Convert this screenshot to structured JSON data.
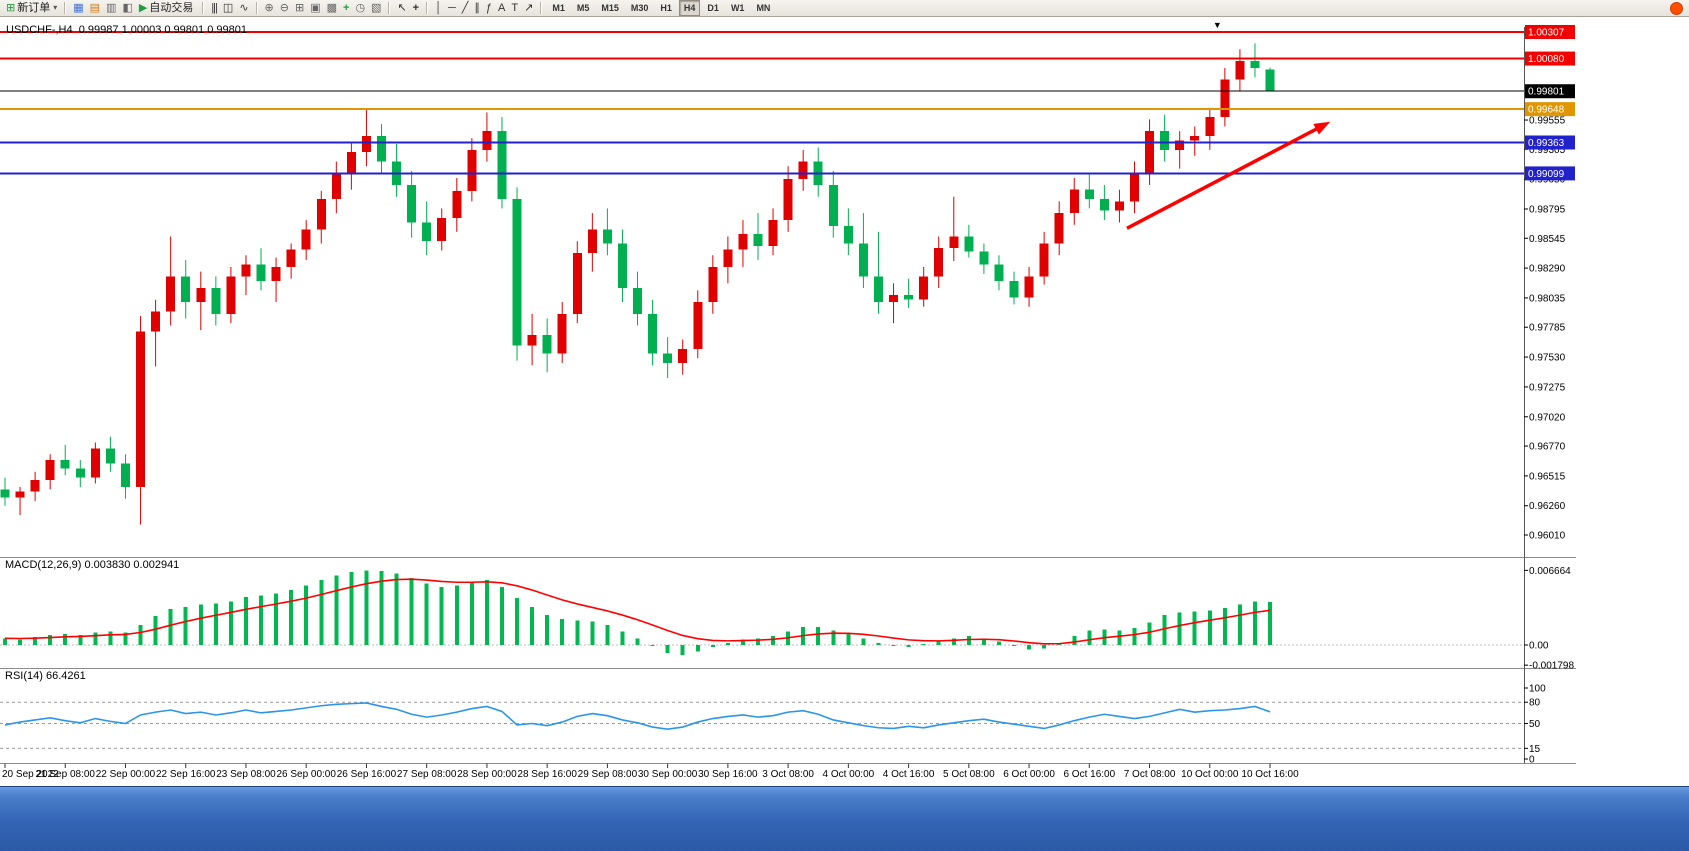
{
  "toolbar": {
    "new_order_label": "新订单",
    "autotrade_label": "自动交易",
    "timeframes": [
      "M1",
      "M5",
      "M15",
      "M30",
      "H1",
      "H4",
      "D1",
      "W1",
      "MN"
    ],
    "active_timeframe": "H4"
  },
  "icons": {
    "new_order": "⊞",
    "dropdown_caret": "▾",
    "charts": "▦",
    "market_watch": "▤",
    "data_window": "▥",
    "navigator": "◧",
    "autotrade_play": "▶",
    "bar_chart": "|||",
    "candle_chart": "◫",
    "line_chart": "∿",
    "zoom_in": "⊕",
    "zoom_out": "⊖",
    "grid": "⊞",
    "tile_windows": "▣",
    "cascade_windows": "▩",
    "indicators_add": "+",
    "periods_clock": "◷",
    "templates": "▧",
    "cursor": "↖",
    "crosshair": "+",
    "vline": "│",
    "hline": "─",
    "trendline": "╱",
    "channel": "∥",
    "fibonacci": "ƒ",
    "text": "A",
    "text_label": "T",
    "arrows": "↗"
  },
  "chart_data": {
    "type": "candlestick",
    "symbol": "USDCHF-,H4",
    "ohlc_text": "0.99987 1.00003 0.99801 0.99801",
    "up_color": "#e00000",
    "down_color": "#00b050",
    "price_axis": {
      "min": 0.9601,
      "max": 1.00307,
      "ticks": [
        "0.99555",
        "0.99305",
        "0.99050",
        "0.98795",
        "0.98545",
        "0.98290",
        "0.98035",
        "0.97785",
        "0.97530",
        "0.97275",
        "0.97020",
        "0.96770",
        "0.96515",
        "0.96260",
        "0.96010"
      ]
    },
    "levels": [
      {
        "price": 1.00307,
        "badge": "1.00307",
        "color": "#f20000",
        "width": 2
      },
      {
        "price": 1.0008,
        "badge": "1.00080",
        "color": "#f20000",
        "width": 2
      },
      {
        "price": 0.99801,
        "badge": "0.99801",
        "color": "#000000",
        "width": 1
      },
      {
        "price": 0.99648,
        "badge": "0.99648",
        "color": "#e09600",
        "width": 2
      },
      {
        "price": 0.99363,
        "badge": "0.99363",
        "color": "#2222cc",
        "width": 2
      },
      {
        "price": 0.99099,
        "badge": "0.99099",
        "color": "#2222cc",
        "width": 2
      }
    ],
    "trend_arrow": {
      "from": {
        "index": 74.5,
        "price": 0.9863
      },
      "to": {
        "index": 88,
        "price": 0.9954
      },
      "color": "#ff0000"
    },
    "top_marker": {
      "index": 80.5,
      "glyph": "▼"
    },
    "time_labels": [
      "20 Sep 2022",
      "21 Sep 08:00",
      "22 Sep 00:00",
      "22 Sep 16:00",
      "23 Sep 08:00",
      "26 Sep 00:00",
      "26 Sep 16:00",
      "27 Sep 08:00",
      "28 Sep 00:00",
      "28 Sep 16:00",
      "29 Sep 08:00",
      "30 Sep 00:00",
      "30 Sep 16:00",
      "3 Oct 08:00",
      "4 Oct 00:00",
      "4 Oct 16:00",
      "5 Oct 08:00",
      "6 Oct 00:00",
      "6 Oct 16:00",
      "7 Oct 08:00",
      "10 Oct 00:00",
      "10 Oct 16:00"
    ],
    "candles_per_label": 4,
    "candles": [
      [
        0.964,
        0.965,
        0.9626,
        0.9633
      ],
      [
        0.9633,
        0.9642,
        0.9618,
        0.9638
      ],
      [
        0.9638,
        0.9655,
        0.963,
        0.9648
      ],
      [
        0.9648,
        0.967,
        0.964,
        0.9665
      ],
      [
        0.9665,
        0.9678,
        0.9652,
        0.9658
      ],
      [
        0.9658,
        0.9665,
        0.9642,
        0.965
      ],
      [
        0.965,
        0.968,
        0.9645,
        0.9675
      ],
      [
        0.9675,
        0.9685,
        0.9655,
        0.9662
      ],
      [
        0.9662,
        0.967,
        0.9632,
        0.9642
      ],
      [
        0.9642,
        0.9788,
        0.961,
        0.9775
      ],
      [
        0.9775,
        0.9802,
        0.9745,
        0.9792
      ],
      [
        0.9792,
        0.9856,
        0.978,
        0.9822
      ],
      [
        0.9822,
        0.9836,
        0.9786,
        0.98
      ],
      [
        0.98,
        0.9826,
        0.9776,
        0.9812
      ],
      [
        0.9812,
        0.9822,
        0.978,
        0.979
      ],
      [
        0.979,
        0.983,
        0.9782,
        0.9822
      ],
      [
        0.9822,
        0.984,
        0.9806,
        0.9832
      ],
      [
        0.9832,
        0.9846,
        0.981,
        0.9818
      ],
      [
        0.9818,
        0.9838,
        0.98,
        0.983
      ],
      [
        0.983,
        0.985,
        0.982,
        0.9845
      ],
      [
        0.9845,
        0.987,
        0.9836,
        0.9862
      ],
      [
        0.9862,
        0.9895,
        0.985,
        0.9888
      ],
      [
        0.9888,
        0.992,
        0.9876,
        0.991
      ],
      [
        0.991,
        0.9936,
        0.9896,
        0.9928
      ],
      [
        0.9928,
        0.9965,
        0.9916,
        0.9942
      ],
      [
        0.9942,
        0.9952,
        0.991,
        0.992
      ],
      [
        0.992,
        0.9935,
        0.989,
        0.99
      ],
      [
        0.99,
        0.9912,
        0.9855,
        0.9868
      ],
      [
        0.9868,
        0.9886,
        0.984,
        0.9852
      ],
      [
        0.9852,
        0.988,
        0.9844,
        0.9872
      ],
      [
        0.9872,
        0.9906,
        0.986,
        0.9895
      ],
      [
        0.9895,
        0.994,
        0.9886,
        0.993
      ],
      [
        0.993,
        0.9962,
        0.992,
        0.9946
      ],
      [
        0.9946,
        0.9958,
        0.988,
        0.9888
      ],
      [
        0.9888,
        0.9898,
        0.975,
        0.9763
      ],
      [
        0.9763,
        0.979,
        0.9746,
        0.9772
      ],
      [
        0.9772,
        0.9786,
        0.974,
        0.9756
      ],
      [
        0.9756,
        0.98,
        0.9748,
        0.979
      ],
      [
        0.979,
        0.9852,
        0.9782,
        0.9842
      ],
      [
        0.9842,
        0.9876,
        0.9826,
        0.9862
      ],
      [
        0.9862,
        0.988,
        0.984,
        0.985
      ],
      [
        0.985,
        0.9862,
        0.98,
        0.9812
      ],
      [
        0.9812,
        0.9826,
        0.978,
        0.979
      ],
      [
        0.979,
        0.9802,
        0.9746,
        0.9756
      ],
      [
        0.9756,
        0.977,
        0.9735,
        0.9748
      ],
      [
        0.9748,
        0.9768,
        0.9738,
        0.976
      ],
      [
        0.976,
        0.981,
        0.9752,
        0.98
      ],
      [
        0.98,
        0.984,
        0.979,
        0.983
      ],
      [
        0.983,
        0.9856,
        0.9816,
        0.9845
      ],
      [
        0.9845,
        0.987,
        0.983,
        0.9858
      ],
      [
        0.9858,
        0.9876,
        0.9836,
        0.9848
      ],
      [
        0.9848,
        0.988,
        0.984,
        0.987
      ],
      [
        0.987,
        0.9916,
        0.986,
        0.9905
      ],
      [
        0.9905,
        0.993,
        0.9895,
        0.992
      ],
      [
        0.992,
        0.9932,
        0.989,
        0.99
      ],
      [
        0.99,
        0.9912,
        0.9855,
        0.9865
      ],
      [
        0.9865,
        0.988,
        0.984,
        0.985
      ],
      [
        0.985,
        0.9876,
        0.9812,
        0.9822
      ],
      [
        0.9822,
        0.986,
        0.979,
        0.98
      ],
      [
        0.98,
        0.9816,
        0.9782,
        0.9806
      ],
      [
        0.9806,
        0.982,
        0.9795,
        0.9802
      ],
      [
        0.9802,
        0.983,
        0.9796,
        0.9822
      ],
      [
        0.9822,
        0.9856,
        0.9812,
        0.9846
      ],
      [
        0.9846,
        0.989,
        0.9835,
        0.9856
      ],
      [
        0.9856,
        0.9866,
        0.9838,
        0.9843
      ],
      [
        0.9843,
        0.985,
        0.9824,
        0.9832
      ],
      [
        0.9832,
        0.984,
        0.981,
        0.9818
      ],
      [
        0.9818,
        0.9826,
        0.9798,
        0.9804
      ],
      [
        0.9804,
        0.983,
        0.9796,
        0.9822
      ],
      [
        0.9822,
        0.986,
        0.9815,
        0.985
      ],
      [
        0.985,
        0.9886,
        0.984,
        0.9876
      ],
      [
        0.9876,
        0.9906,
        0.9866,
        0.9896
      ],
      [
        0.9896,
        0.991,
        0.988,
        0.9888
      ],
      [
        0.9888,
        0.99,
        0.987,
        0.9878
      ],
      [
        0.9878,
        0.9896,
        0.9868,
        0.9886
      ],
      [
        0.9886,
        0.992,
        0.9876,
        0.991
      ],
      [
        0.991,
        0.9956,
        0.99,
        0.9946
      ],
      [
        0.9946,
        0.996,
        0.992,
        0.993
      ],
      [
        0.993,
        0.9946,
        0.9914,
        0.9938
      ],
      [
        0.9938,
        0.995,
        0.9925,
        0.9942
      ],
      [
        0.9942,
        0.9966,
        0.993,
        0.9958
      ],
      [
        0.9958,
        1.0,
        0.995,
        0.999
      ],
      [
        0.999,
        1.0016,
        0.998,
        1.0006
      ],
      [
        1.0006,
        1.0021,
        0.9992,
        1.0
      ],
      [
        0.99987,
        1.00003,
        0.99801,
        0.99801
      ]
    ],
    "macd": {
      "name": "MACD(12,26,9)",
      "values_text": "0.003830 0.002941",
      "hist_color": "#00b84f",
      "signal_color": "#ff0000",
      "axis_ticks": [
        "0.006664",
        "0.00",
        "-0.001798"
      ],
      "histogram": [
        0.0006,
        0.0005,
        0.0007,
        0.0009,
        0.001,
        0.0009,
        0.0011,
        0.0012,
        0.0011,
        0.0018,
        0.0026,
        0.0032,
        0.0034,
        0.0036,
        0.0037,
        0.0039,
        0.0043,
        0.0044,
        0.0046,
        0.0049,
        0.0053,
        0.0058,
        0.0062,
        0.0065,
        0.00666,
        0.0066,
        0.0064,
        0.006,
        0.0055,
        0.0052,
        0.0053,
        0.0056,
        0.0058,
        0.0052,
        0.0042,
        0.0034,
        0.0027,
        0.0023,
        0.0022,
        0.0021,
        0.0018,
        0.0012,
        0.0006,
        -0.0001,
        -0.0007,
        -0.0009,
        -0.0006,
        -0.0002,
        0.0002,
        0.0005,
        0.0006,
        0.0008,
        0.0012,
        0.0016,
        0.0016,
        0.0013,
        0.001,
        0.0006,
        0.0002,
        -0.0001,
        -0.0002,
        0.0001,
        0.0003,
        0.0006,
        0.0008,
        0.0006,
        0.0003,
        -0.0001,
        -0.0004,
        -0.0003,
        0.0002,
        0.0008,
        0.0013,
        0.0014,
        0.0013,
        0.0015,
        0.002,
        0.0027,
        0.0029,
        0.003,
        0.0031,
        0.0033,
        0.0036,
        0.0039,
        0.00383
      ]
    },
    "rsi": {
      "name": "RSI(14)",
      "value_text": "66.4261",
      "line_color": "#2b95e9",
      "levels": [
        80,
        50,
        15
      ],
      "axis_ticks": [
        "100",
        "80",
        "50",
        "15",
        "0"
      ],
      "values": [
        48,
        52,
        55,
        58,
        54,
        51,
        57,
        53,
        50,
        62,
        66,
        69,
        64,
        66,
        62,
        65,
        69,
        65,
        67,
        69,
        72,
        75,
        77,
        78,
        79,
        74,
        70,
        63,
        59,
        62,
        66,
        71,
        74,
        67,
        48,
        50,
        47,
        52,
        60,
        64,
        61,
        55,
        51,
        45,
        42,
        45,
        52,
        57,
        60,
        62,
        59,
        61,
        66,
        68,
        63,
        55,
        51,
        47,
        44,
        43,
        46,
        44,
        48,
        51,
        54,
        56,
        52,
        49,
        46,
        43,
        48,
        54,
        59,
        63,
        60,
        57,
        60,
        65,
        70,
        66,
        68,
        69,
        71,
        74,
        66.43
      ]
    }
  }
}
